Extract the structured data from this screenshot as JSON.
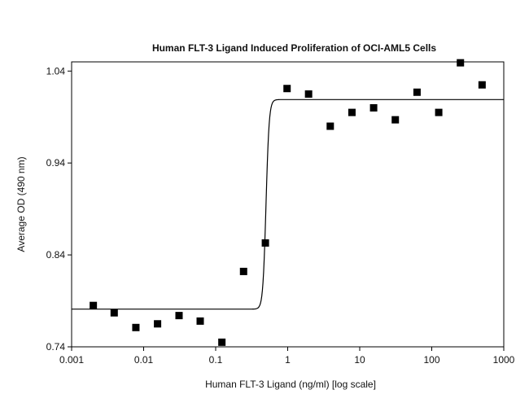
{
  "chart_data": {
    "type": "scatter",
    "title": "Human FLT-3 Ligand Induced Proliferation of OCI-AML5 Cells",
    "xlabel": "Human FLT-3 Ligand (ng/ml) [log scale]",
    "ylabel": "Average OD (490 nm)",
    "x_scale": "log",
    "xlim": [
      0.001,
      1000
    ],
    "ylim": [
      0.74,
      1.05
    ],
    "x_ticks": [
      {
        "value": 0.001,
        "label": "0.001"
      },
      {
        "value": 0.01,
        "label": "0.01"
      },
      {
        "value": 0.1,
        "label": "0.1"
      },
      {
        "value": 1,
        "label": "1"
      },
      {
        "value": 10,
        "label": "10"
      },
      {
        "value": 100,
        "label": "100"
      },
      {
        "value": 1000,
        "label": "1000"
      }
    ],
    "y_ticks": [
      {
        "value": 0.74,
        "label": "0.74"
      },
      {
        "value": 0.84,
        "label": "0.84"
      },
      {
        "value": 0.94,
        "label": "0.94"
      },
      {
        "value": 1.04,
        "label": "1.04"
      }
    ],
    "grid": false,
    "marker_color": "#000000",
    "line_color": "#000000",
    "points": [
      {
        "x": 0.002,
        "y": 0.785
      },
      {
        "x": 0.0039,
        "y": 0.777
      },
      {
        "x": 0.0078,
        "y": 0.761
      },
      {
        "x": 0.0156,
        "y": 0.765
      },
      {
        "x": 0.031,
        "y": 0.774
      },
      {
        "x": 0.061,
        "y": 0.768
      },
      {
        "x": 0.122,
        "y": 0.745
      },
      {
        "x": 0.244,
        "y": 0.822
      },
      {
        "x": 0.49,
        "y": 0.853
      },
      {
        "x": 0.98,
        "y": 1.021
      },
      {
        "x": 1.95,
        "y": 1.015
      },
      {
        "x": 3.9,
        "y": 0.98
      },
      {
        "x": 7.8,
        "y": 0.995
      },
      {
        "x": 15.6,
        "y": 1.0
      },
      {
        "x": 31.2,
        "y": 0.987
      },
      {
        "x": 62.5,
        "y": 1.017
      },
      {
        "x": 125,
        "y": 0.995
      },
      {
        "x": 250,
        "y": 1.049
      },
      {
        "x": 500,
        "y": 1.025
      }
    ],
    "fit_curve": {
      "model": "4-parameter logistic",
      "bottom": 0.781,
      "top": 1.009,
      "ec50": 0.5,
      "hill": 20
    }
  }
}
